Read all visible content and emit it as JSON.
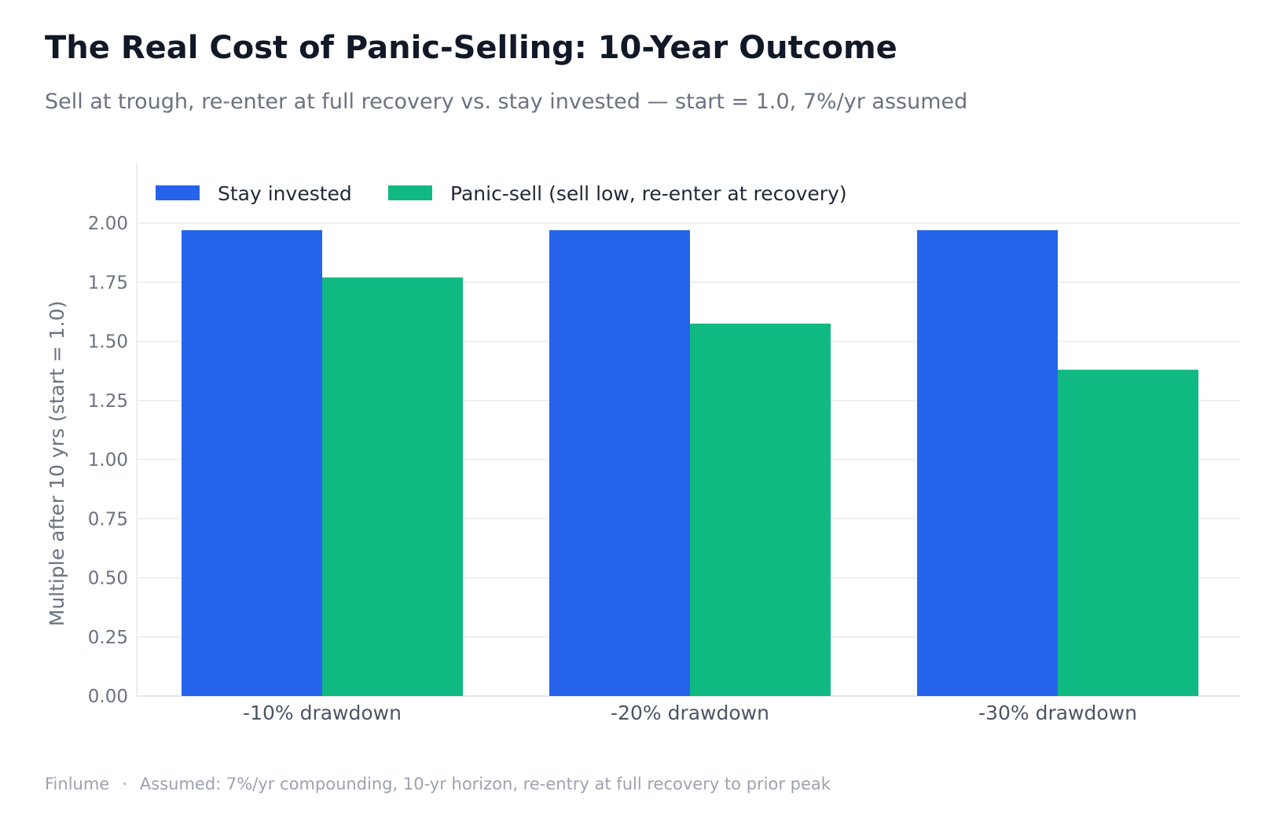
{
  "header": {
    "title": "The Real Cost of Panic-Selling: 10-Year Outcome",
    "subtitle": "Sell at trough, re-enter at full recovery vs. stay invested — start = 1.0, 7%/yr assumed"
  },
  "footer": {
    "brand": "Finlume",
    "separator": "·",
    "note": "Assumed: 7%/yr compounding, 10-yr horizon, re-entry at full recovery to prior peak"
  },
  "chart_data": {
    "type": "bar",
    "categories": [
      "-10% drawdown",
      "-20% drawdown",
      "-30% drawdown"
    ],
    "series": [
      {
        "name": "Stay invested",
        "values": [
          1.97,
          1.97,
          1.97
        ],
        "color": "#2563eb"
      },
      {
        "name": "Panic-sell (sell low, re-enter at recovery)",
        "values": [
          1.77,
          1.575,
          1.38
        ],
        "color": "#10b981"
      }
    ],
    "title": "The Real Cost of Panic-Selling: 10-Year Outcome",
    "xlabel": "",
    "ylabel": "Multiple after 10 yrs (start = 1.0)",
    "ylim": [
      0,
      2.0
    ],
    "yticks": [
      "0.00",
      "0.25",
      "0.50",
      "0.75",
      "1.00",
      "1.25",
      "1.50",
      "1.75",
      "2.00"
    ],
    "grid": true,
    "legend": "top-left"
  }
}
